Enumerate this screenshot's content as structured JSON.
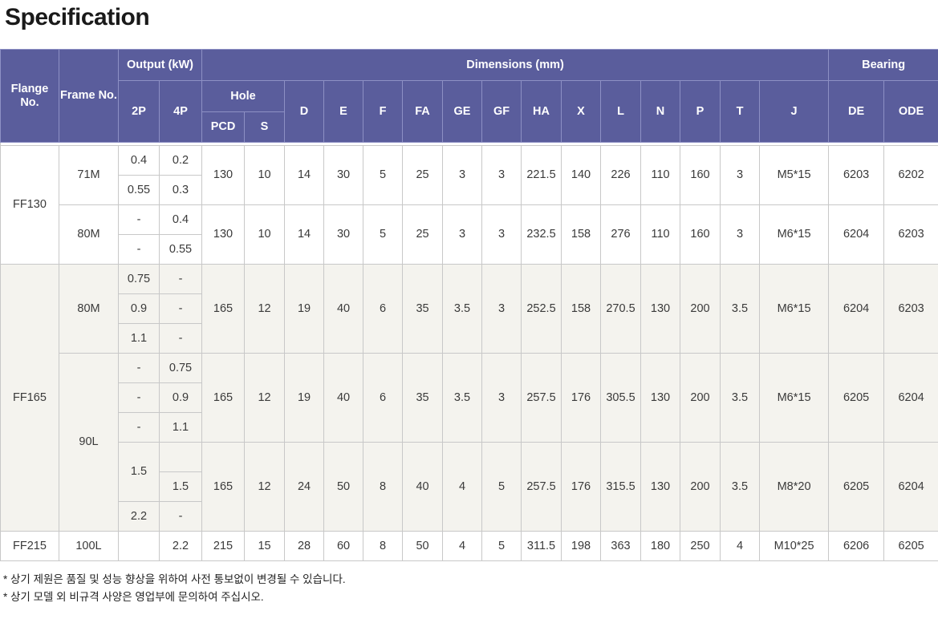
{
  "title": "Specification",
  "header": {
    "flange": "Flange No.",
    "frame": "Frame No.",
    "output": "Output (kW)",
    "dimensions": "Dimensions (mm)",
    "bearing": "Bearing",
    "p2": "2P",
    "p4": "4P",
    "hole": "Hole",
    "pcd": "PCD",
    "s": "S",
    "d": "D",
    "e": "E",
    "f": "F",
    "fa": "FA",
    "ge": "GE",
    "gf": "GF",
    "ha": "HA",
    "x": "X",
    "l": "L",
    "n": "N",
    "p": "P",
    "t": "T",
    "j": "J",
    "de": "DE",
    "ode": "ODE"
  },
  "flanges": [
    {
      "flange": "FF130",
      "frames": [
        {
          "frame": "71M",
          "outputs": [
            [
              "0.4",
              "0.2"
            ],
            [
              "0.55",
              "0.3"
            ]
          ],
          "dims": {
            "pcd": "130",
            "s": "10",
            "d": "14",
            "e": "30",
            "f": "5",
            "fa": "25",
            "ge": "3",
            "gf": "3",
            "ha": "221.5",
            "x": "140",
            "l": "226",
            "n": "110",
            "p": "160",
            "t": "3",
            "j": "M5*15",
            "de": "6203",
            "ode": "6202"
          }
        },
        {
          "frame": "80M",
          "outputs": [
            [
              "-",
              "0.4"
            ],
            [
              "-",
              "0.55"
            ]
          ],
          "dims": {
            "pcd": "130",
            "s": "10",
            "d": "14",
            "e": "30",
            "f": "5",
            "fa": "25",
            "ge": "3",
            "gf": "3",
            "ha": "232.5",
            "x": "158",
            "l": "276",
            "n": "110",
            "p": "160",
            "t": "3",
            "j": "M6*15",
            "de": "6204",
            "ode": "6203"
          }
        }
      ]
    },
    {
      "flange": "FF165",
      "frames": [
        {
          "frame": "80M",
          "outputs": [
            [
              "0.75",
              "-"
            ],
            [
              "0.9",
              "-"
            ],
            [
              "1.1",
              "-"
            ]
          ],
          "dims": {
            "pcd": "165",
            "s": "12",
            "d": "19",
            "e": "40",
            "f": "6",
            "fa": "35",
            "ge": "3.5",
            "gf": "3",
            "ha": "252.5",
            "x": "158",
            "l": "270.5",
            "n": "130",
            "p": "200",
            "t": "3.5",
            "j": "M6*15",
            "de": "6204",
            "ode": "6203"
          }
        },
        {
          "frame": "90L",
          "outputs": [
            [
              "-",
              "0.75"
            ],
            [
              "-",
              "0.9"
            ],
            [
              "-",
              "1.1"
            ]
          ],
          "dims": {
            "pcd": "165",
            "s": "12",
            "d": "19",
            "e": "40",
            "f": "6",
            "fa": "35",
            "ge": "3.5",
            "gf": "3",
            "ha": "257.5",
            "x": "176",
            "l": "305.5",
            "n": "130",
            "p": "200",
            "t": "3.5",
            "j": "M6*15",
            "de": "6205",
            "ode": "6204"
          }
        },
        {
          "outputs_2p": [
            "1.5",
            "2.2"
          ],
          "outputs_4p": [
            "",
            "1.5",
            "-"
          ],
          "dims": {
            "pcd": "165",
            "s": "12",
            "d": "24",
            "e": "50",
            "f": "8",
            "fa": "40",
            "ge": "4",
            "gf": "5",
            "ha": "257.5",
            "x": "176",
            "l": "315.5",
            "n": "130",
            "p": "200",
            "t": "3.5",
            "j": "M8*20",
            "de": "6205",
            "ode": "6204"
          }
        }
      ]
    },
    {
      "flange": "FF215",
      "frames": [
        {
          "frame": "100L",
          "outputs": [
            [
              "",
              "2.2"
            ]
          ],
          "dims": {
            "pcd": "215",
            "s": "15",
            "d": "28",
            "e": "60",
            "f": "8",
            "fa": "50",
            "ge": "4",
            "gf": "5",
            "ha": "311.5",
            "x": "198",
            "l": "363",
            "n": "180",
            "p": "250",
            "t": "4",
            "j": "M10*25",
            "de": "6206",
            "ode": "6205"
          }
        }
      ]
    }
  ],
  "notes": [
    "* 상기 제원은 품질 및 성능 향상을 위하여 사전 통보없이 변경될 수 있습니다.",
    "* 상기 모델 외 비규격 사양은 영업부에 문의하여 주십시오."
  ]
}
